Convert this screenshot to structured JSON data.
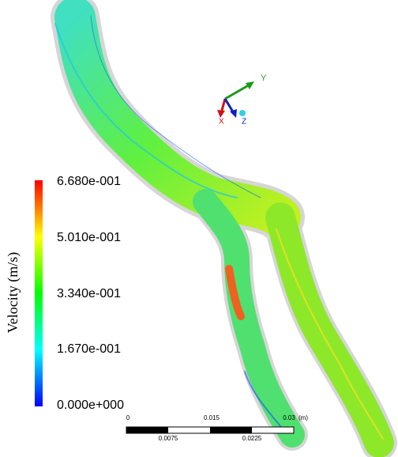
{
  "legend": {
    "title": "Velocity (m/s)",
    "ticks": [
      "6.680e-001",
      "5.010e-001",
      "3.340e-001",
      "1.670e-001",
      "0.000e+000"
    ]
  },
  "triad": {
    "labels": [
      "Y",
      "X",
      "Z"
    ]
  },
  "scale_bar": {
    "top_labels": [
      "0",
      "0.015",
      "0.03"
    ],
    "unit": "(m)",
    "bottom_labels": [
      "0.0075",
      "0.0225"
    ]
  }
}
